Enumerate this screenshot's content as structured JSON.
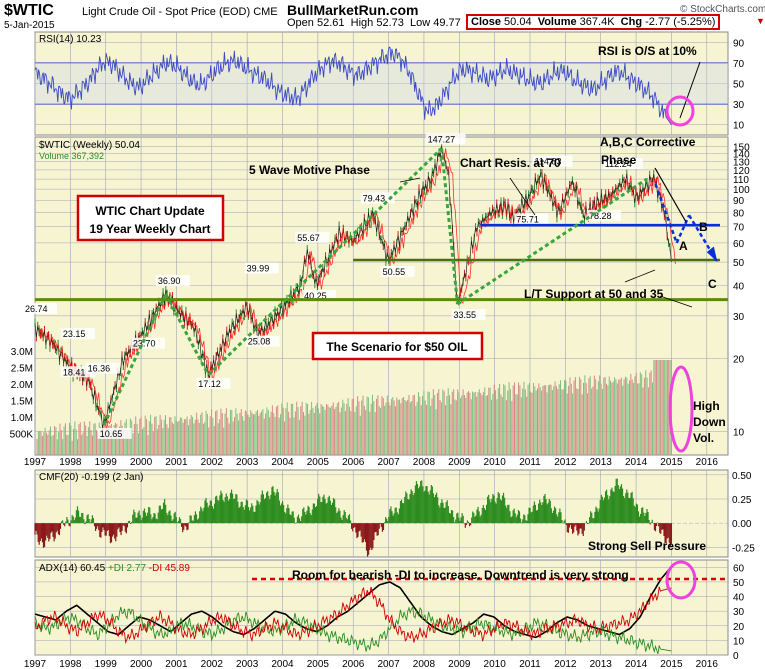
{
  "header": {
    "symbol": "$WTIC",
    "subtitle": "Light Crude Oil - Spot Price (EOD)",
    "exchange": "CME",
    "date": "5-Jan-2015",
    "site": "BullMarketRun.com",
    "open_label": "Open",
    "open": "52.61",
    "high_label": "High",
    "high": "52.73",
    "low_label": "Low",
    "low": "49.77",
    "close_label": "Close",
    "close": "50.04",
    "volume_label": "Volume",
    "volume": "367.4K",
    "chg_label": "Chg",
    "chg": "-2.77 (-5.25%)",
    "watermark": "© StockCharts.com"
  },
  "x_axis": {
    "years": [
      "1997",
      "1998",
      "1999",
      "2000",
      "2001",
      "2002",
      "2003",
      "2004",
      "2005",
      "2006",
      "2007",
      "2008",
      "2009",
      "2010",
      "2011",
      "2012",
      "2013",
      "2014",
      "2015",
      "2016"
    ]
  },
  "colors": {
    "bg": "#f7f4d2",
    "grid": "#9ea4b8",
    "price_line": "#222222",
    "up": "#2e8b2e",
    "down": "#cc2020",
    "ma": "#ff0000",
    "rsi": "#3a49c4",
    "hband": "#5a66c8",
    "cmf_pos": "#2c8c1e",
    "cmf_neg": "#8a1a1a",
    "annotation_box": "#d40000",
    "support": "#5a8a10",
    "trend": "#3aa63a",
    "blue": "#0a2fd8",
    "magenta": "#ee44dd"
  },
  "chart_data": [
    {
      "type": "line",
      "title": "RSI(14) 10.23",
      "ylim": [
        0,
        100
      ],
      "y_ticks": [
        "90",
        "70",
        "50",
        "30",
        "10"
      ],
      "bands": [
        70,
        30
      ],
      "series": [
        {
          "name": "RSI(14)",
          "values": [
            60,
            55,
            48,
            40,
            35,
            42,
            50,
            62,
            72,
            68,
            58,
            50,
            46,
            55,
            62,
            70,
            68,
            60,
            52,
            48,
            56,
            64,
            70,
            72,
            66,
            60,
            56,
            50,
            42,
            38,
            35,
            45,
            58,
            66,
            72,
            70,
            62,
            58,
            64,
            70,
            76,
            80,
            74,
            60,
            40,
            22,
            28,
            40,
            55,
            64,
            62,
            58,
            54,
            58,
            64,
            60,
            56,
            52,
            50,
            56,
            62,
            60,
            52,
            48,
            44,
            50,
            58,
            62,
            56,
            50,
            44,
            36,
            22,
            10
          ]
        }
      ]
    },
    {
      "type": "line",
      "title": "$WTIC (Weekly) 50.04",
      "subtitle": "Volume 367,392",
      "scale": "log",
      "ylim": [
        8,
        155
      ],
      "y_ticks": [
        "150",
        "140",
        "130",
        "120",
        "110",
        "100",
        "90",
        "80",
        "70",
        "60",
        "50",
        "40",
        "30",
        "20",
        "10"
      ],
      "volume_ticks": [
        "3.0M",
        "2.5M",
        "2.0M",
        "1.5M",
        "1.0M",
        "500K"
      ],
      "series": [
        {
          "name": "$WTIC (Weekly)",
          "x": [
            1997.0,
            1997.5,
            1998.0,
            1998.5,
            1998.95,
            1999.5,
            2000.0,
            2000.7,
            2001.0,
            2001.5,
            2001.9,
            2002.5,
            2003.0,
            2003.3,
            2003.9,
            2004.5,
            2004.7,
            2004.95,
            2005.6,
            2006.0,
            2006.55,
            2007.0,
            2007.5,
            2007.9,
            2008.2,
            2008.5,
            2008.7,
            2008.95,
            2009.5,
            2009.9,
            2010.3,
            2010.5,
            2011.0,
            2011.3,
            2011.8,
            2012.2,
            2012.5,
            2012.9,
            2013.3,
            2013.7,
            2014.0,
            2014.5,
            2014.8,
            2015.0
          ],
          "y": [
            26.74,
            23.15,
            18.41,
            16.36,
            10.65,
            20.0,
            25.0,
            36.9,
            32.0,
            27.0,
            17.12,
            26.0,
            33.0,
            25.08,
            31.0,
            40.0,
            55.67,
            40.25,
            66.0,
            61.0,
            79.43,
            50.55,
            72.0,
            96.0,
            110.0,
            147.27,
            115.0,
            33.55,
            70.0,
            80.0,
            86.0,
            75.71,
            95.0,
            114.83,
            80.0,
            108.0,
            78.28,
            88.0,
            95.0,
            110.0,
            92.0,
            112.24,
            80.0,
            50.04
          ]
        }
      ],
      "price_labels": [
        "26.74",
        "23.15",
        "18.41",
        "16.36",
        "10.65",
        "23.70",
        "36.90",
        "17.12",
        "25.08",
        "39.99",
        "55.67",
        "40.25",
        "79.43",
        "50.55",
        "147.27",
        "33.55",
        "75.71",
        "114.83",
        "78.28",
        "112.24"
      ],
      "annotations": [
        "5 Wave Motive Phase",
        "Chart Resis. at 70",
        "A,B,C Corrective Phase",
        "WTIC Chart Update",
        "19 Year Weekly Chart",
        "The Scenario for $50 OIL",
        "L/T Support at 50 and 35",
        "High Down Vol.",
        "A",
        "B",
        "C"
      ]
    },
    {
      "type": "area",
      "title": "CMF(20) -0.199 (2 Jan)",
      "ylim": [
        -0.35,
        0.55
      ],
      "y_ticks": [
        "0.50",
        "0.25",
        "0.00",
        "-0.25"
      ],
      "series": [
        {
          "name": "CMF(20)",
          "values": [
            -0.15,
            -0.2,
            -0.1,
            0.02,
            0.1,
            0.05,
            -0.08,
            -0.15,
            -0.1,
            0.05,
            0.12,
            0.08,
            0.18,
            0.05,
            -0.05,
            0.1,
            0.2,
            0.25,
            0.3,
            0.22,
            0.15,
            0.25,
            0.35,
            0.2,
            0.05,
            0.1,
            0.2,
            0.28,
            0.15,
            0.05,
            -0.12,
            -0.3,
            -0.05,
            0.1,
            0.2,
            0.35,
            0.4,
            0.3,
            0.18,
            0.08,
            0.0,
            0.1,
            0.22,
            0.3,
            0.15,
            0.05,
            0.12,
            0.25,
            0.18,
            0.02,
            -0.1,
            -0.05,
            0.15,
            0.3,
            0.4,
            0.3,
            0.15,
            0.05,
            -0.1,
            -0.2
          ]
        }
      ]
    },
    {
      "type": "line",
      "title": "ADX(14) 60.45",
      "ylim": [
        0,
        65
      ],
      "y_ticks": [
        "60",
        "50",
        "40",
        "30",
        "20",
        "10",
        "0"
      ],
      "series": [
        {
          "name": "ADX(14)",
          "values": [
            28,
            26,
            24,
            30,
            34,
            28,
            22,
            16,
            14,
            20,
            26,
            24,
            20,
            16,
            22,
            28,
            30,
            26,
            20,
            16,
            14,
            18,
            24,
            30,
            28,
            22,
            18,
            16,
            20,
            26,
            30,
            36,
            42,
            48,
            50,
            46,
            36,
            26,
            20,
            16,
            14,
            18,
            22,
            28,
            26,
            20,
            16,
            14,
            12,
            16,
            22,
            26,
            24,
            20,
            18,
            16,
            14,
            18,
            26,
            40,
            52,
            60.45
          ]
        },
        {
          "name": "+DI 2.77",
          "values": [
            22,
            18,
            20,
            26,
            24,
            18,
            14,
            20,
            28,
            30,
            24,
            18,
            14,
            16,
            22,
            20,
            16,
            14,
            18,
            24,
            26,
            22,
            18,
            16,
            20,
            24,
            22,
            18,
            14,
            12,
            10,
            8,
            6,
            10,
            18,
            26,
            30,
            28,
            24,
            20,
            18,
            16,
            20,
            22,
            18,
            16,
            14,
            18,
            22,
            20,
            16,
            14,
            12,
            14,
            16,
            14,
            12,
            10,
            8,
            6,
            4,
            2.77
          ]
        },
        {
          "name": "-DI 45.89",
          "values": [
            18,
            24,
            26,
            20,
            16,
            22,
            28,
            24,
            16,
            12,
            16,
            22,
            26,
            22,
            16,
            14,
            18,
            24,
            26,
            20,
            16,
            14,
            18,
            22,
            18,
            14,
            16,
            20,
            24,
            28,
            34,
            40,
            44,
            36,
            24,
            16,
            12,
            14,
            18,
            22,
            24,
            20,
            16,
            14,
            18,
            22,
            20,
            16,
            14,
            18,
            20,
            22,
            24,
            20,
            18,
            20,
            22,
            24,
            30,
            38,
            44,
            45.89
          ]
        }
      ],
      "annotations": [
        "Strong Sell Pressure",
        "Room for bearish -DI to increase. Downtrend is very strong"
      ]
    }
  ],
  "annotations": {
    "rsi_note": "RSI is O/S at 10%",
    "five_wave": "5 Wave Motive Phase",
    "resis": "Chart Resis. at 70",
    "abc_1": "A,B,C Corrective",
    "abc_2": "Phase",
    "update_1": "WTIC Chart Update",
    "update_2": "19 Year Weekly Chart",
    "scenario": "The Scenario for $50 OIL",
    "support": "L/T Support at 50 and 35",
    "highdown_1": "High",
    "highdown_2": "Down",
    "highdown_3": "Vol.",
    "sell": "Strong Sell Pressure",
    "room": "Room for bearish -DI to increase. Downtrend is very strong",
    "a": "A",
    "b": "B",
    "c": "C"
  }
}
